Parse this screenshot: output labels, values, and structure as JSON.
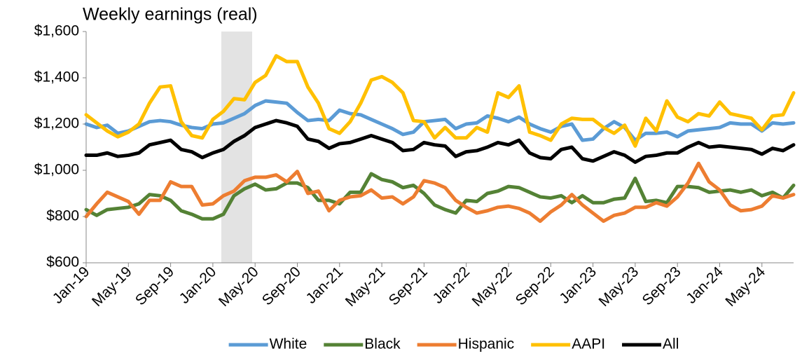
{
  "chart_data": {
    "type": "line",
    "title": "Weekly earnings (real)",
    "categories": [
      "Jan-19",
      null,
      null,
      null,
      "May-19",
      null,
      null,
      null,
      "Sep-19",
      null,
      null,
      null,
      "Jan-20",
      null,
      null,
      null,
      "May-20",
      null,
      null,
      null,
      "Sep-20",
      null,
      null,
      null,
      "Jan-21",
      null,
      null,
      null,
      "May-21",
      null,
      null,
      null,
      "Sep-21",
      null,
      null,
      null,
      "Jan-22",
      null,
      null,
      null,
      "May-22",
      null,
      null,
      null,
      "Sep-22",
      null,
      null,
      null,
      "Jan-23",
      null,
      null,
      null,
      "May-23",
      null,
      null,
      null,
      "Sep-23",
      null,
      null,
      null,
      "Jan-24",
      null,
      null,
      null,
      "May-24",
      null,
      null,
      null
    ],
    "ylim": [
      600,
      1600
    ],
    "yticks": [
      {
        "value": 600,
        "label": "$600"
      },
      {
        "value": 800,
        "label": "$800"
      },
      {
        "value": 1000,
        "label": "$1,000"
      },
      {
        "value": 1200,
        "label": "$1,200"
      },
      {
        "value": 1400,
        "label": "$1,400"
      },
      {
        "value": 1600,
        "label": "$1,600"
      }
    ],
    "series": [
      {
        "name": "White",
        "color": "#5b9bd5",
        "values": [
          1200,
          1185,
          1195,
          1160,
          1170,
          1190,
          1210,
          1215,
          1210,
          1195,
          1185,
          1180,
          1200,
          1205,
          1225,
          1245,
          1280,
          1300,
          1295,
          1290,
          1250,
          1215,
          1220,
          1215,
          1260,
          1245,
          1240,
          1220,
          1200,
          1180,
          1155,
          1165,
          1210,
          1215,
          1220,
          1180,
          1200,
          1205,
          1235,
          1225,
          1210,
          1230,
          1200,
          1180,
          1165,
          1190,
          1200,
          1130,
          1135,
          1180,
          1210,
          1185,
          1130,
          1160,
          1160,
          1165,
          1145,
          1170,
          1175,
          1180,
          1185,
          1205,
          1200,
          1200,
          1170,
          1205,
          1200,
          1205
        ]
      },
      {
        "name": "Black",
        "color": "#548235",
        "values": [
          830,
          805,
          830,
          835,
          840,
          855,
          895,
          890,
          870,
          825,
          810,
          790,
          790,
          810,
          890,
          920,
          940,
          915,
          920,
          945,
          945,
          925,
          870,
          870,
          855,
          905,
          905,
          985,
          960,
          950,
          925,
          935,
          900,
          850,
          830,
          815,
          870,
          865,
          900,
          910,
          930,
          925,
          905,
          885,
          880,
          890,
          860,
          890,
          860,
          860,
          875,
          880,
          965,
          865,
          870,
          860,
          930,
          930,
          925,
          905,
          910,
          915,
          905,
          915,
          890,
          905,
          880,
          935
        ]
      },
      {
        "name": "Hispanic",
        "color": "#ed7d31",
        "values": [
          800,
          855,
          905,
          885,
          865,
          810,
          870,
          870,
          950,
          930,
          930,
          850,
          855,
          890,
          910,
          955,
          970,
          970,
          980,
          950,
          995,
          900,
          910,
          825,
          870,
          885,
          890,
          915,
          880,
          885,
          855,
          885,
          955,
          945,
          925,
          870,
          840,
          815,
          825,
          840,
          845,
          835,
          815,
          780,
          820,
          850,
          895,
          850,
          815,
          780,
          805,
          815,
          840,
          840,
          860,
          845,
          885,
          945,
          1030,
          950,
          915,
          850,
          825,
          830,
          845,
          890,
          880,
          895
        ]
      },
      {
        "name": "AAPI",
        "color": "#ffc000",
        "values": [
          1240,
          1205,
          1170,
          1145,
          1165,
          1200,
          1290,
          1360,
          1365,
          1210,
          1150,
          1140,
          1220,
          1255,
          1310,
          1305,
          1380,
          1410,
          1495,
          1470,
          1470,
          1360,
          1290,
          1180,
          1160,
          1210,
          1290,
          1390,
          1405,
          1380,
          1335,
          1215,
          1210,
          1140,
          1185,
          1140,
          1140,
          1185,
          1165,
          1335,
          1315,
          1365,
          1165,
          1150,
          1130,
          1200,
          1225,
          1220,
          1220,
          1185,
          1160,
          1195,
          1105,
          1225,
          1170,
          1300,
          1230,
          1210,
          1245,
          1235,
          1295,
          1245,
          1235,
          1225,
          1175,
          1235,
          1240,
          1335
        ]
      },
      {
        "name": "All",
        "color": "#000000",
        "values": [
          1065,
          1065,
          1075,
          1060,
          1065,
          1075,
          1110,
          1120,
          1130,
          1090,
          1080,
          1055,
          1075,
          1090,
          1125,
          1150,
          1185,
          1200,
          1215,
          1205,
          1190,
          1135,
          1125,
          1095,
          1115,
          1120,
          1135,
          1150,
          1135,
          1120,
          1085,
          1090,
          1120,
          1110,
          1105,
          1060,
          1080,
          1085,
          1100,
          1120,
          1110,
          1130,
          1075,
          1055,
          1050,
          1090,
          1100,
          1050,
          1040,
          1060,
          1080,
          1065,
          1035,
          1060,
          1065,
          1075,
          1075,
          1100,
          1120,
          1100,
          1105,
          1100,
          1095,
          1090,
          1070,
          1095,
          1085,
          1110
        ]
      }
    ]
  }
}
